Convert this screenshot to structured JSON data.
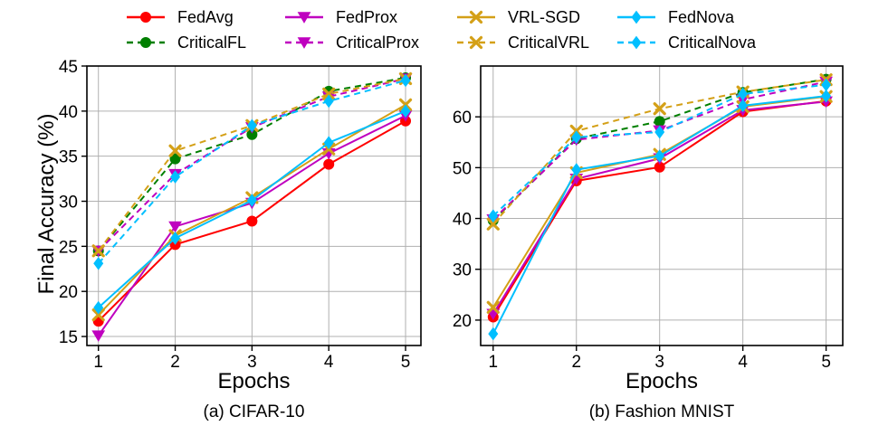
{
  "legend": {
    "entries": [
      {
        "key": "fedavg",
        "label": "FedAvg",
        "color": "#ff0000",
        "dashed": false,
        "marker": "circle"
      },
      {
        "key": "fedprox",
        "label": "FedProx",
        "color": "#bf00bf",
        "dashed": false,
        "marker": "triangle-down"
      },
      {
        "key": "vrlsgd",
        "label": "VRL-SGD",
        "color": "#d4a017",
        "dashed": false,
        "marker": "x"
      },
      {
        "key": "fednova",
        "label": "FedNova",
        "color": "#00bfff",
        "dashed": false,
        "marker": "diamond"
      },
      {
        "key": "criticalfl",
        "label": "CriticalFL",
        "color": "#007f00",
        "dashed": true,
        "marker": "circle"
      },
      {
        "key": "criticalprox",
        "label": "CriticalProx",
        "color": "#bf00bf",
        "dashed": true,
        "marker": "triangle-down"
      },
      {
        "key": "criticalvrl",
        "label": "CriticalVRL",
        "color": "#d4a017",
        "dashed": true,
        "marker": "x"
      },
      {
        "key": "criticalnova",
        "label": "CriticalNova",
        "color": "#00bfff",
        "dashed": true,
        "marker": "diamond"
      }
    ]
  },
  "chart_data": [
    {
      "type": "line",
      "title": "(a) CIFAR-10",
      "xlabel": "Epochs",
      "ylabel": "Final Accuracy (%)",
      "x": [
        1,
        2,
        3,
        4,
        5
      ],
      "xlim": [
        0.85,
        5.2
      ],
      "ylim": [
        14,
        45
      ],
      "yticks": [
        15,
        20,
        25,
        30,
        35,
        40,
        45
      ],
      "grid": true,
      "series": [
        {
          "key": "fedavg",
          "name": "FedAvg",
          "values": [
            16.7,
            25.2,
            27.8,
            34.1,
            38.9
          ]
        },
        {
          "key": "fedprox",
          "name": "FedProx",
          "values": [
            15.1,
            27.2,
            29.8,
            35.3,
            39.5
          ]
        },
        {
          "key": "vrlsgd",
          "name": "VRL-SGD",
          "values": [
            17.4,
            26.2,
            30.4,
            35.8,
            40.7
          ]
        },
        {
          "key": "fednova",
          "name": "FedNova",
          "values": [
            18.2,
            25.9,
            30.1,
            36.5,
            40.0
          ]
        },
        {
          "key": "criticalfl",
          "name": "CriticalFL",
          "values": [
            24.5,
            34.7,
            37.4,
            42.2,
            43.7
          ]
        },
        {
          "key": "criticalprox",
          "name": "CriticalProx",
          "values": [
            24.5,
            33.0,
            38.2,
            41.6,
            43.6
          ]
        },
        {
          "key": "criticalvrl",
          "name": "CriticalVRL",
          "values": [
            24.5,
            35.6,
            38.4,
            41.9,
            43.6
          ]
        },
        {
          "key": "criticalnova",
          "name": "CriticalNova",
          "values": [
            23.1,
            32.7,
            38.4,
            41.1,
            43.4
          ]
        }
      ]
    },
    {
      "type": "line",
      "title": "(b) Fashion MNIST",
      "xlabel": "Epochs",
      "ylabel": "",
      "x": [
        1,
        2,
        3,
        4,
        5
      ],
      "xlim": [
        0.85,
        5.2
      ],
      "ylim": [
        15,
        70
      ],
      "yticks": [
        20,
        30,
        40,
        50,
        60
      ],
      "grid": true,
      "series": [
        {
          "key": "fedavg",
          "name": "FedAvg",
          "values": [
            20.6,
            47.4,
            50.1,
            61.0,
            63.1
          ]
        },
        {
          "key": "fedprox",
          "name": "FedProx",
          "values": [
            21.2,
            47.8,
            51.8,
            61.3,
            63.0
          ]
        },
        {
          "key": "vrlsgd",
          "name": "VRL-SGD",
          "values": [
            22.5,
            49.0,
            52.6,
            62.0,
            64.0
          ]
        },
        {
          "key": "fednova",
          "name": "FedNova",
          "values": [
            17.3,
            49.6,
            52.3,
            62.2,
            64.1
          ]
        },
        {
          "key": "criticalfl",
          "name": "CriticalFL",
          "values": [
            39.6,
            55.7,
            59.1,
            64.8,
            67.4
          ]
        },
        {
          "key": "criticalprox",
          "name": "CriticalProx",
          "values": [
            39.8,
            55.5,
            57.3,
            63.4,
            66.9
          ]
        },
        {
          "key": "criticalvrl",
          "name": "CriticalVRL",
          "values": [
            38.9,
            57.2,
            61.6,
            64.9,
            67.3
          ]
        },
        {
          "key": "criticalnova",
          "name": "CriticalNova",
          "values": [
            40.5,
            56.0,
            57.0,
            64.5,
            66.3
          ]
        }
      ]
    }
  ]
}
